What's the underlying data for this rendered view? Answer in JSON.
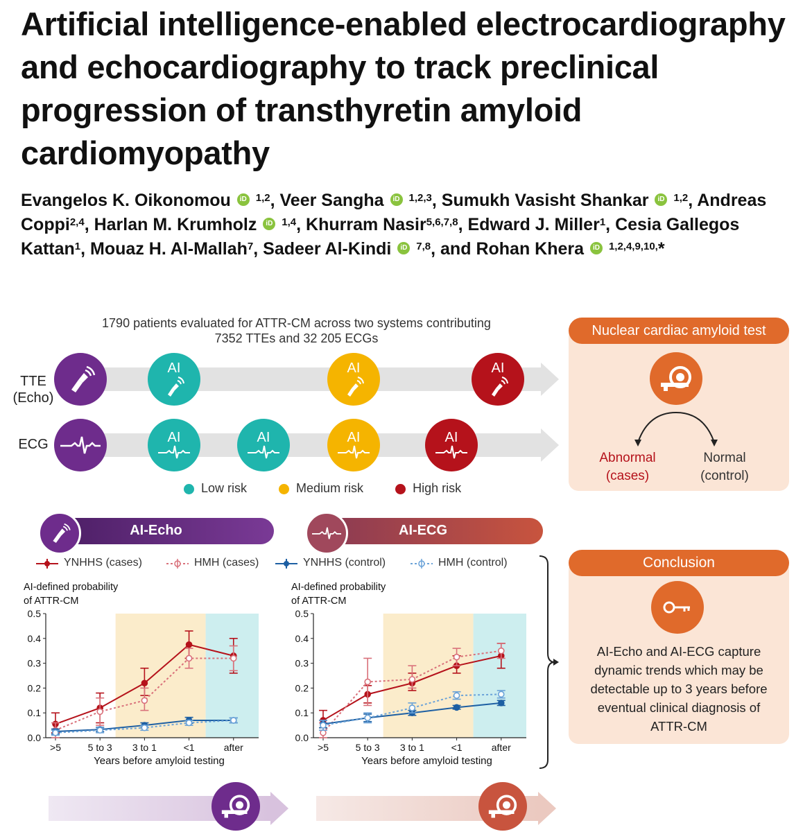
{
  "title": "Artificial intelligence-enabled electrocardiography and echocardiography to track preclinical progression of transthyretin amyloid cardiomyopathy",
  "authors": [
    {
      "name": "Evangelos K. Oikonomou",
      "orcid": true,
      "sup": "1,2",
      "after": ", "
    },
    {
      "name": "Veer Sangha",
      "orcid": true,
      "sup": "1,2,3",
      "after": ", "
    },
    {
      "name": "Sumukh Vasisht Shankar",
      "orcid": true,
      "sup": "1,2",
      "after": ", "
    },
    {
      "name": "Andreas Coppi",
      "orcid": false,
      "sup": "2,4",
      "after": ", "
    },
    {
      "name": "Harlan M. Krumholz",
      "orcid": true,
      "sup": "1,4",
      "after": ", "
    },
    {
      "name": "Khurram Nasir",
      "orcid": false,
      "sup": "5,6,7,8",
      "after": ", "
    },
    {
      "name": "Edward J. Miller",
      "orcid": false,
      "sup": "1",
      "after": ", "
    },
    {
      "name": "Cesia Gallegos Kattan",
      "orcid": false,
      "sup": "1",
      "after": ", "
    },
    {
      "name": "Mouaz H. Al-Mallah",
      "orcid": false,
      "sup": "7",
      "after": ", "
    },
    {
      "name": "Sadeer Al-Kindi",
      "orcid": true,
      "sup": "7,8",
      "after": ", and "
    },
    {
      "name": "Rohan Khera",
      "orcid": true,
      "sup": "1,2,4,9,10,",
      "after": "*"
    }
  ],
  "orcid_label": "iD",
  "figure": {
    "cohort_line1": "1790 patients evaluated for ATTR-CM across two systems contributing",
    "cohort_line2": "7352 TTEs and 32 205 ECGs",
    "row_tte_label1": "TTE",
    "row_tte_label2": "(Echo)",
    "row_ecg_label": "ECG",
    "ai_label": "AI",
    "legend": [
      {
        "label": "Low risk",
        "color": "#1fb5ad"
      },
      {
        "label": "Medium risk",
        "color": "#f5b400"
      },
      {
        "label": "High risk",
        "color": "#b5121b"
      }
    ],
    "nuclear_title": "Nuclear cardiac amyloid test",
    "abnormal_1": "Abnormal",
    "abnormal_2": "(cases)",
    "normal_1": "Normal",
    "normal_2": "(control)",
    "conclusion_title": "Conclusion",
    "conclusion_text": [
      "AI-Echo and AI-ECG capture",
      "dynamic trends which may be",
      "detectable up to 3 years before",
      "eventual clinical diagnosis of",
      "ATTR-CM"
    ],
    "ai_echo_label": "AI-Echo",
    "ai_ecg_label": "AI-ECG",
    "series_legend": [
      "YNHHS (cases)",
      "HMH (cases)",
      "YNHHS (control)",
      "HMH (control)"
    ],
    "colors": {
      "purple": "#6e2c8c",
      "teal": "#1fb5ad",
      "yellow": "#f5b400",
      "red": "#b5121b",
      "orange": "#e06a2b",
      "mauve": "#a0485c"
    }
  },
  "chart_data": [
    {
      "type": "line",
      "ylabel_1": "AI-defined probability",
      "ylabel_2": "of ATTR-CM",
      "xlabel": "Years before amyloid testing",
      "categories": [
        ">5",
        "5 to 3",
        "3 to 1",
        "<1",
        "after"
      ],
      "ylim": [
        0,
        0.5
      ],
      "yticks": [
        "0.0",
        "0.1",
        "0.2",
        "0.3",
        "0.4",
        "0.5"
      ],
      "shaded": {
        "yellow": [
          "5 to 3",
          "<1"
        ],
        "teal": [
          "<1",
          "after"
        ]
      },
      "series": [
        {
          "name": "YNHHS (cases)",
          "values": [
            0.055,
            0.12,
            0.22,
            0.375,
            0.33
          ],
          "lo": [
            0.02,
            0.06,
            0.17,
            0.32,
            0.26
          ],
          "hi": [
            0.1,
            0.18,
            0.28,
            0.43,
            0.4
          ],
          "color": "#b5121b",
          "dashed": false
        },
        {
          "name": "HMH (cases)",
          "values": [
            0.03,
            0.105,
            0.15,
            0.32,
            0.32
          ],
          "lo": [
            0.0,
            0.05,
            0.11,
            0.28,
            0.27
          ],
          "hi": [
            0.06,
            0.16,
            0.2,
            0.36,
            0.37
          ],
          "color": "#d9707a",
          "dashed": true
        },
        {
          "name": "YNHHS (control)",
          "values": [
            0.025,
            0.033,
            0.05,
            0.07,
            0.07
          ],
          "lo": [
            0.015,
            0.025,
            0.04,
            0.058,
            0.06
          ],
          "hi": [
            0.035,
            0.042,
            0.06,
            0.082,
            0.08
          ],
          "color": "#1d5fa3",
          "dashed": false
        },
        {
          "name": "HMH (control)",
          "values": [
            0.02,
            0.03,
            0.04,
            0.06,
            0.07
          ],
          "lo": [
            0.01,
            0.02,
            0.03,
            0.05,
            0.06
          ],
          "hi": [
            0.03,
            0.04,
            0.05,
            0.07,
            0.08
          ],
          "color": "#6aa2d8",
          "dashed": true
        }
      ]
    },
    {
      "type": "line",
      "ylabel_1": "AI-defined probability",
      "ylabel_2": "of ATTR-CM",
      "xlabel": "Years before amyloid testing",
      "categories": [
        ">5",
        "5 to 3",
        "3 to 1",
        "<1",
        "after"
      ],
      "ylim": [
        0,
        0.5
      ],
      "yticks": [
        "0.0",
        "0.1",
        "0.2",
        "0.3",
        "0.4",
        "0.5"
      ],
      "shaded": {
        "yellow": [
          "5 to 3",
          "<1"
        ],
        "teal": [
          "<1",
          "after"
        ]
      },
      "series": [
        {
          "name": "YNHHS (cases)",
          "values": [
            0.07,
            0.175,
            0.22,
            0.29,
            0.33
          ],
          "lo": [
            0.04,
            0.14,
            0.19,
            0.26,
            0.28
          ],
          "hi": [
            0.11,
            0.21,
            0.26,
            0.33,
            0.38
          ],
          "color": "#b5121b",
          "dashed": false
        },
        {
          "name": "HMH (cases)",
          "values": [
            0.02,
            0.225,
            0.235,
            0.325,
            0.35
          ],
          "lo": [
            0.0,
            0.13,
            0.2,
            0.29,
            0.32
          ],
          "hi": [
            0.06,
            0.32,
            0.29,
            0.36,
            0.38
          ],
          "color": "#d9707a",
          "dashed": true
        },
        {
          "name": "YNHHS (control)",
          "values": [
            0.055,
            0.08,
            0.1,
            0.122,
            0.14
          ],
          "lo": [
            0.04,
            0.065,
            0.09,
            0.115,
            0.13
          ],
          "hi": [
            0.07,
            0.095,
            0.11,
            0.13,
            0.15
          ],
          "color": "#1d5fa3",
          "dashed": false
        },
        {
          "name": "HMH (control)",
          "values": [
            0.05,
            0.08,
            0.12,
            0.17,
            0.175
          ],
          "lo": [
            0.03,
            0.06,
            0.1,
            0.155,
            0.16
          ],
          "hi": [
            0.07,
            0.1,
            0.14,
            0.185,
            0.19
          ],
          "color": "#6aa2d8",
          "dashed": true
        }
      ]
    }
  ]
}
